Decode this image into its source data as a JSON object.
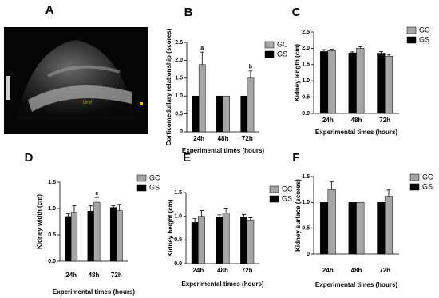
{
  "image_panel": {
    "panel": "A",
    "label": "Lin d"
  },
  "chart_data": [
    {
      "type": "bar",
      "panel": "B",
      "ylabel": "Corticomedullary relationship (scores)",
      "xlabel": "Experimental times (hours)",
      "categories": [
        "24h",
        "48h",
        "72h"
      ],
      "series": [
        {
          "name": "GS",
          "color": "#000000",
          "values": [
            1.0,
            1.0,
            1.0
          ],
          "errors": [
            null,
            null,
            null
          ]
        },
        {
          "name": "GC",
          "color": "#a6a6a6",
          "values": [
            1.88,
            1.0,
            1.5
          ],
          "errors": [
            0.35,
            null,
            0.2
          ]
        }
      ],
      "legend_order": [
        "GC",
        "GS"
      ],
      "annotations": [
        {
          "text": "a",
          "category": "24h"
        },
        {
          "text": "b",
          "category": "72h"
        }
      ],
      "ylim": [
        0,
        2.5
      ],
      "yticks": [
        0,
        0.5,
        {
          "value": 1,
          "label": "1.0"
        },
        {
          "value": 1.5,
          "label": "1.5"
        },
        {
          "value": 2,
          "label": "2.0"
        },
        {
          "value": 2.5,
          "label": "2.5"
        }
      ]
    },
    {
      "type": "bar",
      "panel": "C",
      "ylabel": "Kidney length (cm)",
      "xlabel": "Experimental times (hours)",
      "categories": [
        "24h",
        "48h",
        "72h"
      ],
      "series": [
        {
          "name": "GS",
          "color": "#000000",
          "values": [
            1.9,
            1.86,
            1.85
          ],
          "errors": [
            0.06,
            0.03,
            0.05
          ]
        },
        {
          "name": "GC",
          "color": "#a6a6a6",
          "values": [
            1.93,
            2.0,
            1.76
          ],
          "errors": [
            0.04,
            0.05,
            0.05
          ]
        }
      ],
      "legend_order": [
        "GC",
        "GS"
      ],
      "annotations": [],
      "ylim": [
        0,
        2.5
      ],
      "yticks": [
        {
          "value": 0,
          "label": "0.0"
        },
        0.5,
        {
          "value": 1,
          "label": "1.0"
        },
        1.5,
        {
          "value": 2,
          "label": "2.0"
        },
        2.5
      ]
    },
    {
      "type": "bar",
      "panel": "D",
      "ylabel": "Kidney width (cm)",
      "xlabel": "Experimental times (hours)",
      "categories": [
        "24h",
        "48h",
        "72h"
      ],
      "series": [
        {
          "name": "GS",
          "color": "#000000",
          "values": [
            0.85,
            0.95,
            1.02
          ],
          "errors": [
            0.05,
            0.1,
            0.03
          ]
        },
        {
          "name": "GC",
          "color": "#a6a6a6",
          "values": [
            0.93,
            1.12,
            0.96
          ],
          "errors": [
            0.12,
            0.09,
            0.12
          ]
        }
      ],
      "legend_order": [
        "GC",
        "GS"
      ],
      "annotations": [
        {
          "text": "c",
          "category": "48h"
        }
      ],
      "ylim": [
        0,
        1.5
      ],
      "yticks": [
        {
          "value": 0,
          "label": "0.0"
        },
        0.5,
        {
          "value": 1,
          "label": "1.0"
        },
        1.5
      ]
    },
    {
      "type": "bar",
      "panel": "E",
      "ylabel": "Kidney height (cm)",
      "xlabel": "Experimental times (hours)",
      "categories": [
        "24h",
        "48h",
        "72h"
      ],
      "series": [
        {
          "name": "GS",
          "color": "#000000",
          "values": [
            0.87,
            0.98,
            0.99
          ],
          "errors": [
            0.08,
            0.05,
            0.05
          ]
        },
        {
          "name": "GC",
          "color": "#a6a6a6",
          "values": [
            1.0,
            1.07,
            0.92
          ],
          "errors": [
            0.12,
            0.1,
            0.05
          ]
        }
      ],
      "legend_order": [
        "GC",
        "GS"
      ],
      "annotations": [],
      "ylim": [
        0,
        1.5
      ],
      "yticks": [
        {
          "value": 0,
          "label": "0.0"
        },
        0.5,
        {
          "value": 1,
          "label": "1.0"
        },
        1.5
      ]
    },
    {
      "type": "bar",
      "panel": "F",
      "ylabel": "Kidney surface (scores)",
      "xlabel": "Experimental times (hours)",
      "categories": [
        "24h",
        "48h",
        "72h"
      ],
      "series": [
        {
          "name": "GS",
          "color": "#000000",
          "values": [
            1.0,
            1.0,
            1.0
          ],
          "errors": [
            null,
            null,
            null
          ]
        },
        {
          "name": "GC",
          "color": "#a6a6a6",
          "values": [
            1.25,
            1.0,
            1.12
          ],
          "errors": [
            0.15,
            null,
            0.12
          ]
        }
      ],
      "legend_order": [
        "GC",
        "GS"
      ],
      "annotations": [],
      "ylim": [
        0,
        1.5
      ],
      "yticks": [
        0,
        0.5,
        {
          "value": 1,
          "label": "1.0"
        },
        1.5
      ]
    }
  ]
}
